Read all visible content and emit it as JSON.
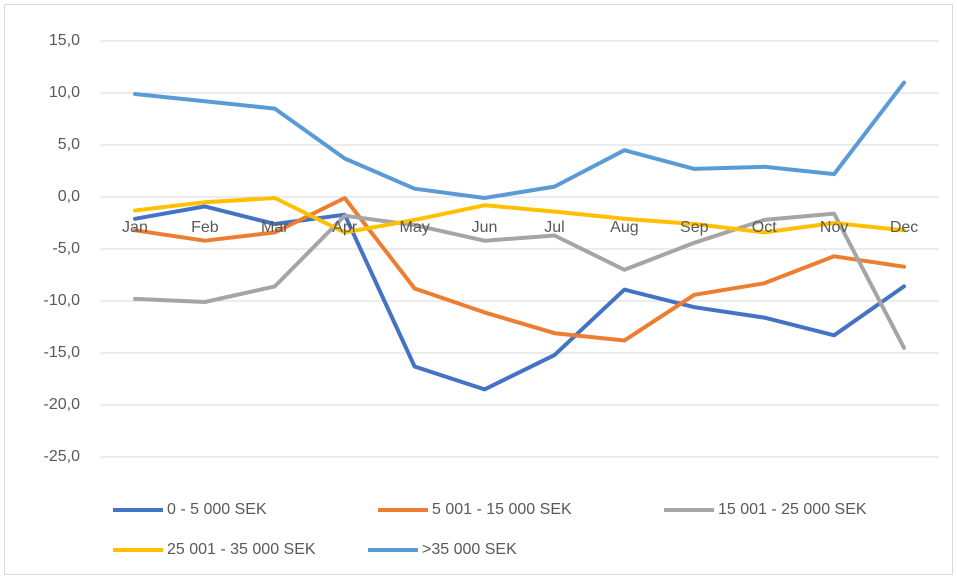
{
  "chart_data": {
    "type": "line",
    "categories": [
      "Jan",
      "Feb",
      "Mar",
      "Apr",
      "May",
      "Jun",
      "Jul",
      "Aug",
      "Sep",
      "Oct",
      "Nov",
      "Dec"
    ],
    "series": [
      {
        "name": "0 - 5 000 SEK",
        "color": "#4472c4",
        "values": [
          -2.1,
          -0.9,
          -2.6,
          -1.7,
          -16.3,
          -18.5,
          -15.2,
          -8.9,
          -10.6,
          -11.6,
          -13.3,
          -8.6
        ]
      },
      {
        "name": "5 001 - 15 000 SEK",
        "color": "#ed7d31",
        "values": [
          -3.2,
          -4.2,
          -3.4,
          -0.1,
          -8.8,
          -11.1,
          -13.1,
          -13.8,
          -9.4,
          -8.3,
          -5.7,
          -6.7
        ]
      },
      {
        "name": "15 001 - 25 000 SEK",
        "color": "#a5a5a5",
        "values": [
          -9.8,
          -10.1,
          -8.6,
          -1.8,
          -2.7,
          -4.2,
          -3.7,
          -7.0,
          -4.4,
          -2.2,
          -1.6,
          -14.5
        ]
      },
      {
        "name": "25 001 - 35 000 SEK",
        "color": "#ffc000",
        "values": [
          -1.3,
          -0.5,
          -0.1,
          -3.4,
          -2.2,
          -0.8,
          -1.4,
          -2.1,
          -2.6,
          -3.4,
          -2.5,
          -3.2
        ]
      },
      {
        "name": ">35 000 SEK",
        "color": "#5b9bd5",
        "values": [
          9.9,
          9.2,
          8.5,
          3.7,
          0.8,
          -0.1,
          1.0,
          4.5,
          2.7,
          2.9,
          2.2,
          11.0
        ]
      }
    ],
    "ylim": [
      -25,
      15
    ],
    "yticks": [
      {
        "value": -25,
        "label": "-25,0"
      },
      {
        "value": -20,
        "label": "-20,0"
      },
      {
        "value": -15,
        "label": "-15,0"
      },
      {
        "value": -10,
        "label": "-10,0"
      },
      {
        "value": -5,
        "label": "-5,0"
      },
      {
        "value": 0,
        "label": "0,0"
      },
      {
        "value": 5,
        "label": "5,0"
      },
      {
        "value": 10,
        "label": "10,0"
      },
      {
        "value": 15,
        "label": "15,0"
      }
    ],
    "grid": true
  }
}
